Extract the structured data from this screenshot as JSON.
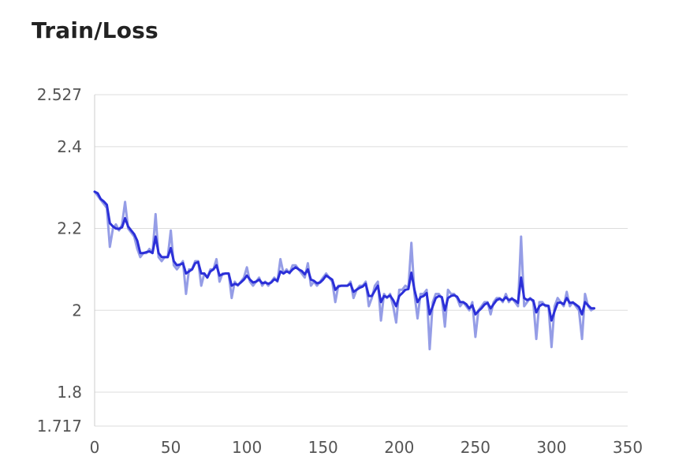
{
  "title": "Train/Loss",
  "chart_data": {
    "type": "line",
    "title": "Train/Loss",
    "xlabel": "",
    "ylabel": "",
    "xlim": [
      0,
      350
    ],
    "ylim": [
      1.717,
      2.527
    ],
    "xticks": [
      0,
      50,
      100,
      150,
      200,
      250,
      300,
      350
    ],
    "yticks": [
      1.717,
      1.8,
      2,
      2.2,
      2.4,
      2.527
    ],
    "ytick_labels": [
      "1.717",
      "1.8",
      "2",
      "2.2",
      "2.4",
      "2.527"
    ],
    "grid": "horizontal",
    "colors": {
      "raw": "#959de6",
      "smoothed": "#2b2fd8",
      "grid": "#dddddd",
      "axis": "#cccccc"
    },
    "series": [
      {
        "role": "raw",
        "x": [
          0,
          2,
          4,
          6,
          8,
          10,
          12,
          14,
          16,
          18,
          20,
          22,
          24,
          26,
          28,
          30,
          32,
          34,
          36,
          38,
          40,
          42,
          44,
          46,
          48,
          50,
          52,
          54,
          56,
          58,
          60,
          62,
          64,
          66,
          68,
          70,
          72,
          74,
          76,
          78,
          80,
          82,
          84,
          86,
          88,
          90,
          92,
          94,
          96,
          98,
          100,
          102,
          104,
          106,
          108,
          110,
          112,
          114,
          116,
          118,
          120,
          122,
          124,
          126,
          128,
          130,
          132,
          134,
          136,
          138,
          140,
          142,
          144,
          146,
          148,
          150,
          152,
          154,
          156,
          158,
          160,
          162,
          164,
          166,
          168,
          170,
          172,
          174,
          176,
          178,
          180,
          182,
          184,
          186,
          188,
          190,
          192,
          194,
          196,
          198,
          200,
          202,
          204,
          206,
          208,
          210,
          212,
          214,
          216,
          218,
          220,
          222,
          224,
          226,
          228,
          230,
          232,
          234,
          236,
          238,
          240,
          242,
          244,
          246,
          248,
          250,
          252,
          254,
          256,
          258,
          260,
          262,
          264,
          266,
          268,
          270,
          272,
          274,
          276,
          278,
          280,
          282,
          284,
          286,
          288,
          290,
          292,
          294,
          296,
          298,
          300,
          302,
          304,
          306,
          308,
          310,
          312,
          314,
          316,
          318,
          320,
          322,
          324,
          326,
          328
        ],
        "values": [
          2.29,
          2.28,
          2.27,
          2.26,
          2.25,
          2.155,
          2.2,
          2.21,
          2.195,
          2.21,
          2.265,
          2.2,
          2.19,
          2.18,
          2.15,
          2.13,
          2.14,
          2.14,
          2.15,
          2.14,
          2.235,
          2.13,
          2.12,
          2.13,
          2.13,
          2.195,
          2.11,
          2.1,
          2.11,
          2.12,
          2.04,
          2.1,
          2.1,
          2.12,
          2.12,
          2.06,
          2.09,
          2.08,
          2.1,
          2.1,
          2.125,
          2.07,
          2.09,
          2.09,
          2.09,
          2.03,
          2.07,
          2.06,
          2.07,
          2.08,
          2.105,
          2.07,
          2.06,
          2.07,
          2.08,
          2.06,
          2.07,
          2.06,
          2.07,
          2.08,
          2.07,
          2.125,
          2.09,
          2.1,
          2.09,
          2.11,
          2.11,
          2.1,
          2.09,
          2.08,
          2.115,
          2.06,
          2.07,
          2.06,
          2.07,
          2.08,
          2.09,
          2.08,
          2.07,
          2.02,
          2.06,
          2.06,
          2.06,
          2.06,
          2.07,
          2.03,
          2.05,
          2.06,
          2.06,
          2.07,
          2.01,
          2.03,
          2.06,
          2.07,
          1.975,
          2.04,
          2.03,
          2.04,
          2.01,
          1.97,
          2.05,
          2.05,
          2.06,
          2.055,
          2.165,
          2.04,
          1.98,
          2.04,
          2.04,
          2.05,
          1.905,
          2.02,
          2.04,
          2.04,
          2.03,
          1.96,
          2.05,
          2.04,
          2.04,
          2.03,
          2.01,
          2.02,
          2.01,
          2.0,
          2.02,
          1.935,
          2.0,
          2.01,
          2.02,
          2.02,
          1.99,
          2.02,
          2.03,
          2.03,
          2.02,
          2.04,
          2.02,
          2.03,
          2.02,
          2.01,
          2.18,
          2.01,
          2.02,
          2.03,
          2.02,
          1.93,
          2.02,
          2.02,
          2.01,
          2.01,
          1.91,
          2.01,
          2.03,
          2.02,
          2.01,
          2.045,
          2.01,
          2.02,
          2.01,
          2.0,
          1.93,
          2.04,
          2.01,
          2.0,
          2.005
        ],
        "values_smoothed": [
          2.29,
          2.286,
          2.272,
          2.266,
          2.258,
          2.213,
          2.205,
          2.2,
          2.199,
          2.203,
          2.225,
          2.205,
          2.195,
          2.186,
          2.17,
          2.14,
          2.14,
          2.142,
          2.144,
          2.14,
          2.18,
          2.14,
          2.13,
          2.13,
          2.13,
          2.152,
          2.12,
          2.11,
          2.112,
          2.115,
          2.09,
          2.095,
          2.1,
          2.115,
          2.118,
          2.09,
          2.09,
          2.08,
          2.095,
          2.1,
          2.11,
          2.085,
          2.088,
          2.09,
          2.09,
          2.06,
          2.065,
          2.062,
          2.068,
          2.075,
          2.085,
          2.075,
          2.068,
          2.07,
          2.075,
          2.066,
          2.068,
          2.065,
          2.068,
          2.076,
          2.072,
          2.095,
          2.09,
          2.095,
          2.092,
          2.1,
          2.105,
          2.1,
          2.096,
          2.088,
          2.1,
          2.075,
          2.072,
          2.066,
          2.068,
          2.075,
          2.085,
          2.08,
          2.075,
          2.05,
          2.058,
          2.06,
          2.06,
          2.06,
          2.065,
          2.045,
          2.05,
          2.055,
          2.058,
          2.065,
          2.035,
          2.035,
          2.048,
          2.06,
          2.02,
          2.035,
          2.032,
          2.036,
          2.025,
          2.01,
          2.035,
          2.042,
          2.05,
          2.052,
          2.092,
          2.05,
          2.02,
          2.032,
          2.035,
          2.042,
          1.99,
          2.01,
          2.03,
          2.035,
          2.032,
          2.0,
          2.03,
          2.035,
          2.037,
          2.033,
          2.02,
          2.02,
          2.015,
          2.005,
          2.012,
          1.99,
          1.998,
          2.005,
          2.014,
          2.018,
          2.005,
          2.015,
          2.025,
          2.028,
          2.024,
          2.032,
          2.025,
          2.028,
          2.024,
          2.018,
          2.08,
          2.03,
          2.025,
          2.028,
          2.024,
          1.995,
          2.01,
          2.015,
          2.012,
          2.011,
          1.975,
          1.998,
          2.018,
          2.019,
          2.015,
          2.03,
          2.018,
          2.019,
          2.014,
          2.008,
          1.99,
          2.02,
          2.012,
          2.005,
          2.005
        ]
      }
    ]
  }
}
